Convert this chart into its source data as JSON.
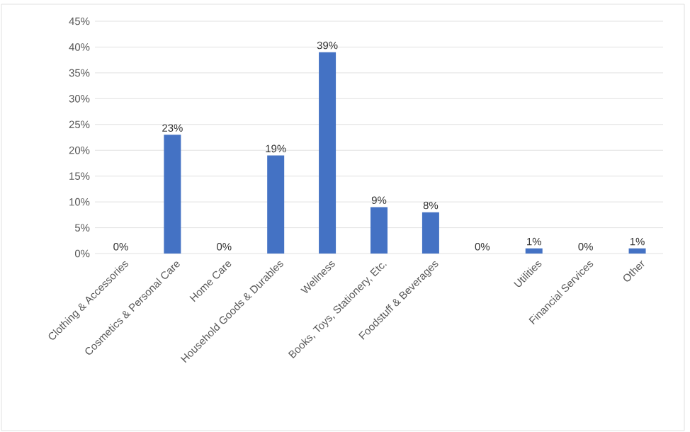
{
  "chart_data": {
    "type": "bar",
    "categories": [
      "Clothing & Accessories",
      "Cosmetics & Personal Care",
      "Home Care",
      "Household Goods & Durables",
      "Wellness",
      "Books, Toys, Stationery, Etc.",
      "Foodstuff & Beverages",
      null,
      "Utilities",
      "Financial Services",
      "Other"
    ],
    "values": [
      0,
      23,
      0,
      19,
      39,
      9,
      8,
      0,
      1,
      0,
      1
    ],
    "value_labels": [
      "0%",
      "23%",
      "0%",
      "19%",
      "39%",
      "9%",
      "8%",
      "0%",
      "1%",
      "0%",
      "1%"
    ],
    "color": "#4472c4",
    "ylim": [
      0,
      45
    ],
    "yticks": [
      {
        "value": 0,
        "label": "0%"
      },
      {
        "value": 5,
        "label": "5%"
      },
      {
        "value": 10,
        "label": "10%"
      },
      {
        "value": 15,
        "label": "15%"
      },
      {
        "value": 20,
        "label": "20%"
      },
      {
        "value": 25,
        "label": "25%"
      },
      {
        "value": 30,
        "label": "30%"
      },
      {
        "value": 35,
        "label": "35%"
      },
      {
        "value": 40,
        "label": "40%"
      },
      {
        "value": 45,
        "label": "45%"
      }
    ],
    "grid": "y"
  }
}
